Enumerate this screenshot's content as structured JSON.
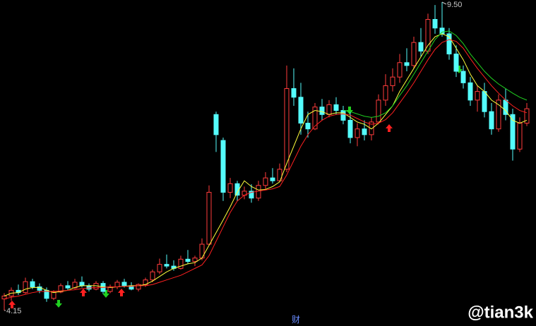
{
  "chart_data": {
    "type": "candlestick",
    "ylim": [
      4.15,
      9.5
    ],
    "up_color": "#ff3c3c",
    "down_color": "#54fcfc",
    "open": [
      4.35,
      4.4,
      4.5,
      4.46,
      4.65,
      4.56,
      4.5,
      4.36,
      4.47,
      4.58,
      4.54,
      4.64,
      4.58,
      4.52,
      4.62,
      4.48,
      4.56,
      4.64,
      4.58,
      4.52,
      4.6,
      4.68,
      4.82,
      4.95,
      4.92,
      4.88,
      5.04,
      5.0,
      5.06,
      5.3,
      7.55,
      7.1,
      6.2,
      6.35,
      6.15,
      6.22,
      6.1,
      6.32,
      6.45,
      6.4,
      6.6,
      8.0,
      7.85,
      7.4,
      7.3,
      7.68,
      7.55,
      7.72,
      7.62,
      7.45,
      7.15,
      7.3,
      7.2,
      7.42,
      7.8,
      8.05,
      8.2,
      8.45,
      8.4,
      8.8,
      8.65,
      9.2,
      9.05,
      8.95,
      8.6,
      8.3,
      8.1,
      7.8,
      7.95,
      7.6,
      7.3,
      7.8,
      7.55,
      6.95,
      7.4
    ],
    "high": [
      4.45,
      4.55,
      4.6,
      4.72,
      4.7,
      4.62,
      4.55,
      4.5,
      4.62,
      4.66,
      4.7,
      4.74,
      4.62,
      4.66,
      4.66,
      4.6,
      4.68,
      4.7,
      4.64,
      4.62,
      4.72,
      4.86,
      5.05,
      5.12,
      5.02,
      5.1,
      5.2,
      5.1,
      5.4,
      6.32,
      7.6,
      7.15,
      6.45,
      6.4,
      6.3,
      6.34,
      6.4,
      6.55,
      6.62,
      6.7,
      8.4,
      8.35,
      8.1,
      7.6,
      7.75,
      7.82,
      7.8,
      7.85,
      7.7,
      7.6,
      7.4,
      7.45,
      7.5,
      7.9,
      8.25,
      8.35,
      8.6,
      8.7,
      8.9,
      9.05,
      9.3,
      9.45,
      9.5,
      9.05,
      8.75,
      8.4,
      8.2,
      8.05,
      8.1,
      7.75,
      7.9,
      8.0,
      7.65,
      7.5,
      7.75
    ],
    "low": [
      4.15,
      4.32,
      4.42,
      4.44,
      4.52,
      4.45,
      4.3,
      4.33,
      4.45,
      4.5,
      4.52,
      4.55,
      4.48,
      4.5,
      4.44,
      4.45,
      4.52,
      4.55,
      4.5,
      4.48,
      4.56,
      4.64,
      4.78,
      4.88,
      4.84,
      4.86,
      4.96,
      4.92,
      5.02,
      5.28,
      6.9,
      6.05,
      6.1,
      6.05,
      6.08,
      6.02,
      6.05,
      6.25,
      6.35,
      6.38,
      6.55,
      7.7,
      7.2,
      7.15,
      7.28,
      7.45,
      7.5,
      7.55,
      7.38,
      7.05,
      7.0,
      7.1,
      7.1,
      7.38,
      7.7,
      7.95,
      8.1,
      8.3,
      8.35,
      8.55,
      8.6,
      8.95,
      8.9,
      8.5,
      8.2,
      8.0,
      7.7,
      7.6,
      7.5,
      7.2,
      7.25,
      7.45,
      6.75,
      6.9,
      7.35
    ],
    "close": [
      4.4,
      4.5,
      4.46,
      4.65,
      4.56,
      4.5,
      4.36,
      4.47,
      4.58,
      4.54,
      4.64,
      4.58,
      4.52,
      4.62,
      4.48,
      4.56,
      4.64,
      4.58,
      4.52,
      4.6,
      4.68,
      4.82,
      4.95,
      4.92,
      4.88,
      5.04,
      5.0,
      5.06,
      5.3,
      6.2,
      7.2,
      6.2,
      6.35,
      6.15,
      6.22,
      6.1,
      6.32,
      6.45,
      6.4,
      6.6,
      8.0,
      7.85,
      7.4,
      7.3,
      7.68,
      7.55,
      7.72,
      7.62,
      7.45,
      7.15,
      7.3,
      7.2,
      7.42,
      7.8,
      8.05,
      8.2,
      8.45,
      8.4,
      8.8,
      8.65,
      9.2,
      9.05,
      8.95,
      8.6,
      8.3,
      8.1,
      7.8,
      7.95,
      7.6,
      7.3,
      7.8,
      7.55,
      6.95,
      7.4,
      7.65
    ],
    "series": [
      {
        "color": "#ffff3c",
        "values": [
          4.4,
          4.45,
          4.46,
          4.52,
          4.55,
          4.55,
          4.5,
          4.46,
          4.48,
          4.5,
          4.55,
          4.58,
          4.58,
          4.58,
          4.56,
          4.55,
          4.56,
          4.57,
          4.58,
          4.58,
          4.6,
          4.66,
          4.74,
          4.82,
          4.88,
          4.92,
          4.96,
          4.98,
          5.06,
          5.28,
          5.5,
          5.72,
          5.95,
          6.2,
          6.4,
          6.3,
          6.24,
          6.25,
          6.3,
          6.38,
          6.7,
          7.0,
          7.3,
          7.55,
          7.62,
          7.6,
          7.55,
          7.58,
          7.58,
          7.5,
          7.42,
          7.38,
          7.3,
          7.4,
          7.55,
          7.7,
          7.95,
          8.15,
          8.35,
          8.55,
          8.75,
          8.9,
          8.95,
          8.9,
          8.7,
          8.5,
          8.25,
          8.05,
          7.95,
          7.8,
          7.72,
          7.62,
          7.45,
          7.4,
          7.45
        ]
      },
      {
        "color": "#ff2020",
        "values": [
          4.35,
          4.38,
          4.4,
          4.43,
          4.46,
          4.48,
          4.48,
          4.48,
          4.49,
          4.5,
          4.51,
          4.53,
          4.54,
          4.55,
          4.55,
          4.56,
          4.56,
          4.57,
          4.57,
          4.58,
          4.58,
          4.6,
          4.64,
          4.68,
          4.72,
          4.76,
          4.82,
          4.88,
          4.94,
          5.1,
          5.35,
          5.6,
          5.85,
          6.05,
          6.15,
          6.2,
          6.22,
          6.24,
          6.26,
          6.3,
          6.5,
          6.75,
          7.0,
          7.2,
          7.35,
          7.45,
          7.52,
          7.55,
          7.56,
          7.54,
          7.48,
          7.42,
          7.38,
          7.4,
          7.46,
          7.58,
          7.75,
          7.92,
          8.1,
          8.3,
          8.5,
          8.68,
          8.8,
          8.85,
          8.82,
          8.7,
          8.52,
          8.35,
          8.2,
          8.05,
          7.92,
          7.8,
          7.7,
          7.62,
          7.58
        ]
      },
      {
        "color": "#20d020",
        "values": [
          null,
          null,
          null,
          null,
          null,
          null,
          null,
          null,
          null,
          null,
          null,
          null,
          null,
          null,
          null,
          null,
          null,
          null,
          null,
          null,
          null,
          null,
          null,
          null,
          null,
          null,
          null,
          null,
          null,
          null,
          null,
          null,
          null,
          null,
          null,
          null,
          null,
          null,
          null,
          null,
          null,
          null,
          null,
          null,
          null,
          null,
          null,
          null,
          7.62,
          7.6,
          7.56,
          7.52,
          7.5,
          7.52,
          7.58,
          7.7,
          7.88,
          8.05,
          8.25,
          8.45,
          8.65,
          8.85,
          8.98,
          9.0,
          8.92,
          8.78,
          8.6,
          8.45,
          8.3,
          8.18,
          8.08,
          8.0,
          7.92,
          7.85,
          7.8
        ]
      }
    ],
    "annotations": [
      {
        "value": 9.5,
        "label": "9.50"
      },
      {
        "value": 4.15,
        "label": "4.15"
      }
    ],
    "watermark": "@tian3k",
    "icon_label": "财"
  }
}
